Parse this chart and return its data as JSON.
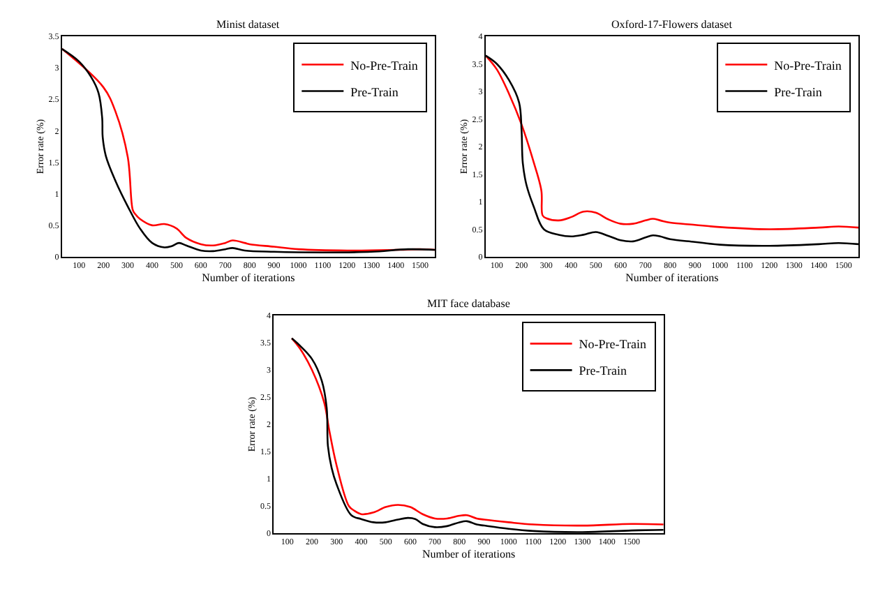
{
  "chart_data": [
    {
      "type": "line",
      "title": "Minist dataset",
      "xlabel": "Number of iterations",
      "ylabel": "Error rate (%)",
      "xlim": [
        30,
        1560
      ],
      "xticks": [
        100,
        200,
        300,
        400,
        500,
        600,
        700,
        800,
        900,
        1000,
        1100,
        1200,
        1300,
        1400,
        1500
      ],
      "ylim": [
        0,
        3.5
      ],
      "yticks": [
        0,
        0.5,
        1,
        1.5,
        2,
        2.5,
        3,
        3.5
      ],
      "legend": "top right",
      "marker": "none",
      "line_style": "solid",
      "series": [
        {
          "name": "No-Pre-Train",
          "color": "#ff0000",
          "x": [
            30,
            200,
            250,
            300,
            320,
            330,
            350,
            400,
            450,
            500,
            540,
            600,
            650,
            700,
            730,
            780,
            800,
            900,
            1000,
            1200,
            1400,
            1500,
            1560
          ],
          "values": [
            3.3,
            2.69,
            2.3,
            1.58,
            0.75,
            0.68,
            0.6,
            0.5,
            0.52,
            0.45,
            0.3,
            0.2,
            0.18,
            0.22,
            0.26,
            0.22,
            0.2,
            0.16,
            0.12,
            0.1,
            0.11,
            0.12,
            0.11
          ]
        },
        {
          "name": "Pre-Train",
          "color": "#000000",
          "x": [
            30,
            100,
            150,
            180,
            195,
            197,
            210,
            250,
            300,
            350,
            400,
            450,
            480,
            510,
            540,
            600,
            650,
            700,
            730,
            780,
            900,
            1100,
            1300,
            1450,
            1560
          ],
          "values": [
            3.3,
            3.1,
            2.85,
            2.6,
            2.2,
            1.9,
            1.6,
            1.2,
            0.8,
            0.45,
            0.22,
            0.15,
            0.17,
            0.22,
            0.18,
            0.1,
            0.09,
            0.12,
            0.14,
            0.1,
            0.08,
            0.07,
            0.08,
            0.12,
            0.11
          ]
        }
      ]
    },
    {
      "type": "line",
      "title": "Oxford-17-Flowers dataset",
      "xlabel": "Number of iterations",
      "ylabel": "Error rate (%)",
      "xlim": [
        55,
        1560
      ],
      "xticks": [
        100,
        200,
        300,
        400,
        500,
        600,
        700,
        800,
        900,
        1000,
        1100,
        1200,
        1300,
        1400,
        1500
      ],
      "ylim": [
        0,
        4
      ],
      "yticks": [
        0,
        0.5,
        1,
        1.5,
        2,
        2.5,
        3,
        3.5,
        4
      ],
      "legend": "top right",
      "marker": "none",
      "line_style": "solid",
      "series": [
        {
          "name": "No-Pre-Train",
          "color": "#ff0000",
          "x": [
            55,
            100,
            150,
            200,
            250,
            280,
            285,
            300,
            350,
            400,
            450,
            500,
            550,
            600,
            650,
            700,
            730,
            760,
            800,
            900,
            1000,
            1200,
            1400,
            1480,
            1560
          ],
          "values": [
            3.65,
            3.4,
            2.95,
            2.4,
            1.7,
            1.2,
            0.75,
            0.7,
            0.66,
            0.72,
            0.82,
            0.8,
            0.68,
            0.6,
            0.6,
            0.66,
            0.69,
            0.66,
            0.62,
            0.58,
            0.54,
            0.5,
            0.53,
            0.55,
            0.53
          ]
        },
        {
          "name": "Pre-Train",
          "color": "#000000",
          "x": [
            55,
            100,
            150,
            190,
            200,
            205,
            220,
            250,
            290,
            350,
            400,
            450,
            500,
            550,
            600,
            650,
            700,
            730,
            760,
            800,
            900,
            1000,
            1200,
            1400,
            1480,
            1560
          ],
          "values": [
            3.65,
            3.5,
            3.2,
            2.8,
            2.3,
            1.7,
            1.3,
            0.9,
            0.5,
            0.4,
            0.37,
            0.4,
            0.45,
            0.38,
            0.3,
            0.28,
            0.35,
            0.39,
            0.37,
            0.32,
            0.27,
            0.22,
            0.2,
            0.23,
            0.25,
            0.23
          ]
        }
      ]
    },
    {
      "type": "line",
      "title": "MIT face database",
      "xlabel": "Number of iterations",
      "ylabel": "Error rate (%)",
      "xlim": [
        45,
        1630
      ],
      "xticks": [
        100,
        200,
        300,
        400,
        500,
        600,
        700,
        800,
        900,
        1000,
        1100,
        1200,
        1300,
        1400,
        1500
      ],
      "ylim": [
        0,
        4
      ],
      "yticks": [
        0,
        0.5,
        1,
        1.5,
        2,
        2.5,
        3,
        3.5,
        4
      ],
      "legend": "top right",
      "marker": "none",
      "line_style": "solid",
      "series": [
        {
          "name": "No-Pre-Train",
          "color": "#ff0000",
          "x": [
            118,
            150,
            200,
            250,
            270,
            300,
            350,
            370,
            400,
            450,
            500,
            550,
            600,
            650,
            700,
            750,
            800,
            830,
            870,
            900,
            1000,
            1100,
            1300,
            1500,
            1630
          ],
          "values": [
            3.58,
            3.4,
            3.0,
            2.4,
            1.9,
            1.25,
            0.5,
            0.42,
            0.35,
            0.38,
            0.48,
            0.52,
            0.48,
            0.35,
            0.27,
            0.27,
            0.32,
            0.33,
            0.27,
            0.25,
            0.2,
            0.16,
            0.14,
            0.17,
            0.16
          ]
        },
        {
          "name": "Pre-Train",
          "color": "#000000",
          "x": [
            118,
            150,
            200,
            240,
            260,
            265,
            280,
            300,
            360,
            400,
            450,
            500,
            550,
            590,
            620,
            650,
            700,
            750,
            800,
            830,
            870,
            900,
            1000,
            1100,
            1300,
            1500,
            1630
          ],
          "values": [
            3.58,
            3.45,
            3.2,
            2.8,
            2.3,
            1.6,
            1.2,
            0.9,
            0.33,
            0.26,
            0.2,
            0.2,
            0.25,
            0.28,
            0.26,
            0.17,
            0.11,
            0.13,
            0.2,
            0.22,
            0.16,
            0.14,
            0.08,
            0.04,
            0.02,
            0.05,
            0.06
          ]
        }
      ]
    }
  ]
}
